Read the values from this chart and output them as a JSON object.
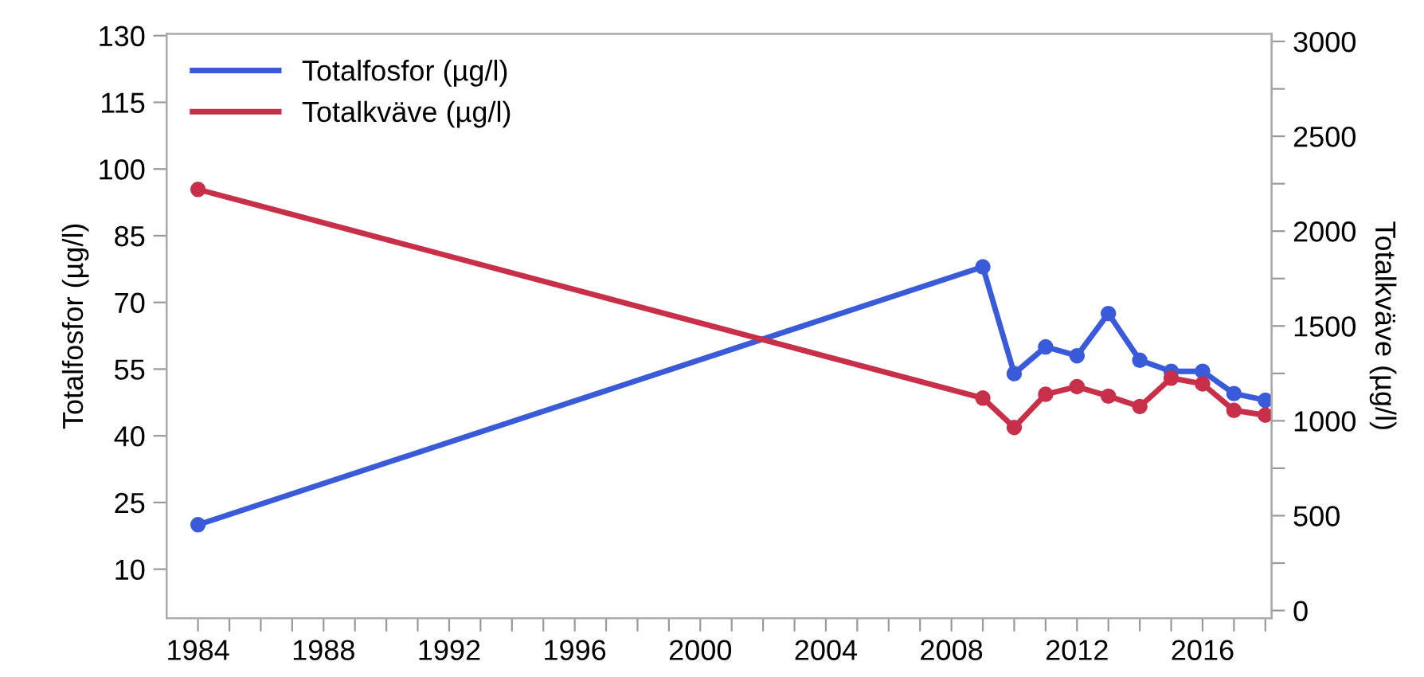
{
  "chart_data": {
    "type": "line",
    "ylabel": "Totalfosfor (µg/l)",
    "y2label": "Totalkväve (µg/l)",
    "x": [
      1984,
      2009,
      2010,
      2011,
      2012,
      2013,
      2014,
      2015,
      2016,
      2017,
      2018
    ],
    "series": [
      {
        "name": "Totalfosfor (µg/l)",
        "color": "#3a5bd9",
        "values": [
          20,
          78,
          54,
          60,
          58,
          67.5,
          57,
          54.5,
          54.5,
          49.5,
          48
        ]
      },
      {
        "name": "Totalkväve (µg/l)",
        "color": "#c8304a",
        "axis": "y2",
        "values": [
          2220,
          1120,
          965,
          1140,
          1180,
          1130,
          1075,
          1225,
          1195,
          1055,
          1030
        ]
      }
    ],
    "xlim": [
      1983,
      2018.2
    ],
    "xticks": [
      1984,
      {
        "value": 1985,
        "label": null
      },
      {
        "value": 1986,
        "label": null
      },
      {
        "value": 1987,
        "label": null
      },
      1988,
      {
        "value": 1989,
        "label": null
      },
      {
        "value": 1990,
        "label": null
      },
      {
        "value": 1991,
        "label": null
      },
      1992,
      {
        "value": 1993,
        "label": null
      },
      {
        "value": 1994,
        "label": null
      },
      {
        "value": 1995,
        "label": null
      },
      1996,
      {
        "value": 1997,
        "label": null
      },
      {
        "value": 1998,
        "label": null
      },
      {
        "value": 1999,
        "label": null
      },
      2000,
      {
        "value": 2001,
        "label": null
      },
      {
        "value": 2002,
        "label": null
      },
      {
        "value": 2003,
        "label": null
      },
      2004,
      {
        "value": 2005,
        "label": null
      },
      {
        "value": 2006,
        "label": null
      },
      {
        "value": 2007,
        "label": null
      },
      2008,
      {
        "value": 2009,
        "label": null
      },
      {
        "value": 2010,
        "label": null
      },
      {
        "value": 2011,
        "label": null
      },
      2012,
      {
        "value": 2013,
        "label": null
      },
      {
        "value": 2014,
        "label": null
      },
      {
        "value": 2015,
        "label": null
      },
      2016,
      {
        "value": 2017,
        "label": null
      },
      {
        "value": 2018,
        "label": null
      }
    ],
    "ylim": [
      -1,
      130.4
    ],
    "yticks": [
      10,
      25,
      40,
      55,
      70,
      85,
      100,
      115,
      130
    ],
    "y2lim": [
      -40,
      3040
    ],
    "y2ticks": [
      0,
      {
        "value": 250,
        "label": null
      },
      500,
      {
        "value": 750,
        "label": null
      },
      1000,
      {
        "value": 1250,
        "label": null
      },
      1500,
      {
        "value": 1750,
        "label": null
      },
      2000,
      {
        "value": 2250,
        "label": null
      },
      2500,
      {
        "value": 2750,
        "label": null
      },
      3000
    ],
    "marker": "circle",
    "line_style": "solid",
    "legend": "top left",
    "grid": false
  }
}
